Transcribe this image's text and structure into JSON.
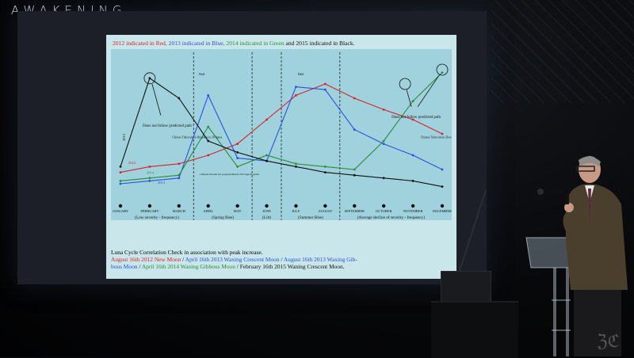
{
  "brand": {
    "logo": "AWAKENING"
  },
  "slide": {
    "legend": {
      "red": "2012 indicated in Red, ",
      "blue": "2013 indicated in Blue, ",
      "green": "2014 indicated in Green ",
      "black_and": "and ",
      "black": "2015 indicated in Black."
    },
    "months": [
      "JANUARY",
      "FEBRUARY",
      "MARCH",
      "APRIL",
      "MAY",
      "JUNE",
      "JULY",
      "AUGUST",
      "SEPTEMBER",
      "OCTOBER",
      "NOVEMBER",
      "DECEMBER"
    ],
    "annotations": {
      "left_note": "Does not follow predicted path",
      "right_note": "Does not follow predicted path",
      "china_1": "Chinese Tuberculosis Broadens to 30 States",
      "china_2": "Chinese Tuberculosis December",
      "red_note": "Chinese income tax program March 2013 ignore peaks",
      "label_2012": "2012",
      "label_2013": "2013",
      "label_2014": "2014",
      "label_2015": "2015",
      "peak_1": "Half",
      "peak_2": "Half"
    },
    "phases": [
      "(Low severity - frequency)",
      "(Spring Rise)",
      "Spring Equinox",
      "(Lilt)",
      "(Summer Rise)",
      "Summer Solstice",
      "(Average decline of severity - frequency)"
    ],
    "notes": {
      "line1": "Luna Cycle Correlation Check in association with peak increase.",
      "l2_red": "August 16th 2012 New Moon",
      "l2_sep1": " / ",
      "l2_blue": "April 16th 2013 Waxing Crescent Moon",
      "l2_sep2": " / ",
      "l2_blue2": "August 16th 2013 Waxing Gib-",
      "l3_blue": "bous Moon",
      "l3_sep1": " / ",
      "l3_green": "April 16th 2014 Waning Gibbous Moon",
      "l3_sep2": " / ",
      "l3_black": "February 16th 2015 Waning Crescent Moon."
    },
    "colors": {
      "red": "#d8222b",
      "blue": "#2b50e0",
      "green": "#2e8b3a",
      "black": "#111111"
    }
  },
  "chart_data": {
    "type": "line",
    "categories": [
      "JANUARY",
      "FEBRUARY",
      "MARCH",
      "APRIL",
      "MAY",
      "JUNE",
      "JULY",
      "AUGUST",
      "SEPTEMBER",
      "OCTOBER",
      "NOVEMBER",
      "DECEMBER"
    ],
    "series": [
      {
        "name": "2012",
        "values": [
          18,
          22,
          24,
          30,
          38,
          55,
          72,
          80,
          70,
          62,
          55,
          45
        ]
      },
      {
        "name": "2013",
        "values": [
          10,
          12,
          14,
          72,
          28,
          26,
          78,
          76,
          48,
          38,
          30,
          20
        ]
      },
      {
        "name": "2014",
        "values": [
          12,
          14,
          16,
          50,
          22,
          30,
          24,
          22,
          20,
          40,
          68,
          88
        ]
      },
      {
        "name": "2015",
        "values": [
          22,
          84,
          70,
          40,
          32,
          26,
          22,
          18,
          16,
          14,
          12,
          8
        ]
      }
    ],
    "ylim": [
      0,
      100
    ]
  }
}
